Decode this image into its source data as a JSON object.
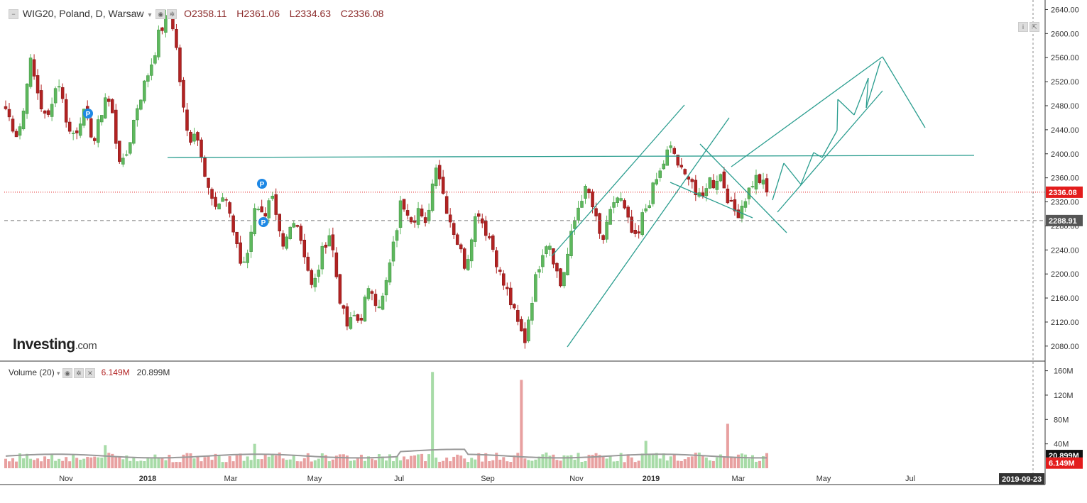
{
  "header": {
    "symbol": "WIG20, Poland, D, Warsaw",
    "open": "O2358.11",
    "high": "H2361.06",
    "low": "L2334.63",
    "close": "C2336.08"
  },
  "volume_header": {
    "name": "Volume (20)",
    "value1": "6.149M",
    "value2": "20.899M"
  },
  "logo": {
    "brand": "Investing",
    "suffix": ".com"
  },
  "colors": {
    "up": "#5db85d",
    "down": "#b22222",
    "trendline": "#2a9d8f",
    "price_tag": "#e31c1c",
    "axis_tag": "#555555"
  },
  "chart_data": [
    {
      "type": "candlestick",
      "title": "WIG20, Poland, D, Warsaw",
      "y_axis_ticks": [
        "2640.00",
        "2600.00",
        "2560.00",
        "2520.00",
        "2480.00",
        "2440.00",
        "2400.00",
        "2360.00",
        "2320.00",
        "2280.00",
        "2240.00",
        "2200.00",
        "2160.00",
        "2120.00",
        "2080.00"
      ],
      "ylim": [
        2055,
        2650
      ],
      "x_axis_ticks": [
        "Nov",
        "2018",
        "Mar",
        "May",
        "Jul",
        "Sep",
        "Nov",
        "2019",
        "Mar",
        "May",
        "Jul"
      ],
      "last_price": "2336.08",
      "reference_price": "2288.91",
      "pivot_markers": [
        "P",
        "P",
        "P"
      ],
      "close_path": [
        2475,
        2450,
        2430,
        2470,
        2560,
        2520,
        2480,
        2450,
        2500,
        2520,
        2470,
        2430,
        2440,
        2470,
        2450,
        2420,
        2460,
        2500,
        2470,
        2400,
        2380,
        2420,
        2470,
        2500,
        2530,
        2560,
        2600,
        2620,
        2635,
        2570,
        2480,
        2420,
        2440,
        2410,
        2360,
        2320,
        2300,
        2340,
        2300,
        2250,
        2210,
        2240,
        2300,
        2320,
        2290,
        2330,
        2280,
        2240,
        2270,
        2300,
        2260,
        2220,
        2170,
        2210,
        2250,
        2270,
        2200,
        2140,
        2110,
        2130,
        2120,
        2160,
        2175,
        2150,
        2160,
        2210,
        2260,
        2320,
        2310,
        2290,
        2310,
        2270,
        2330,
        2390,
        2340,
        2300,
        2270,
        2240,
        2210,
        2270,
        2310,
        2280,
        2260,
        2230,
        2190,
        2170,
        2140,
        2110,
        2090,
        2150,
        2200,
        2240,
        2260,
        2220,
        2180,
        2220,
        2270,
        2310,
        2340,
        2330,
        2290,
        2250,
        2280,
        2320,
        2330,
        2300,
        2270,
        2250,
        2300,
        2320,
        2350,
        2370,
        2400,
        2410,
        2380,
        2360,
        2370,
        2330,
        2320,
        2360,
        2350,
        2370,
        2340,
        2310,
        2300,
        2320,
        2340,
        2360,
        2355,
        2336
      ]
    },
    {
      "type": "bar",
      "title": "Volume (20)",
      "y_axis_ticks": [
        "160M",
        "120M",
        "80M",
        "40M"
      ],
      "ylim": [
        0,
        170
      ],
      "current_value": "6.149M",
      "moving_average": "20.899M",
      "spikes_M": [
        158,
        145,
        70,
        73
      ]
    }
  ],
  "axis_tags": {
    "price": "2336.08",
    "ref": "2288.91",
    "vol_ma": "20.899M",
    "vol": "6.149M",
    "date": "2019-09-23"
  }
}
